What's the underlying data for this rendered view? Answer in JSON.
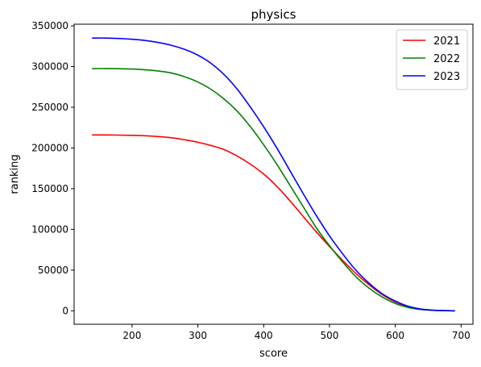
{
  "chart_data": {
    "type": "line",
    "title": "physics",
    "xlabel": "score",
    "ylabel": "ranking",
    "xlim": [
      112,
      718
    ],
    "ylim": [
      -16500,
      352000
    ],
    "xticks": [
      200,
      300,
      400,
      500,
      600,
      700
    ],
    "yticks": [
      0,
      50000,
      100000,
      150000,
      200000,
      250000,
      300000,
      350000
    ],
    "grid": false,
    "legend_position": "upper right",
    "series": [
      {
        "name": "2021",
        "color": "#ff0000",
        "x": [
          140,
          160,
          180,
          200,
          220,
          240,
          260,
          280,
          300,
          320,
          340,
          360,
          380,
          400,
          420,
          440,
          460,
          480,
          500,
          520,
          540,
          560,
          580,
          600,
          620,
          640,
          660,
          680,
          690
        ],
        "y": [
          216000,
          216000,
          215800,
          215500,
          215000,
          214000,
          212500,
          210000,
          207000,
          203000,
          198000,
          190000,
          180000,
          168000,
          153000,
          135000,
          116000,
          97000,
          79000,
          62000,
          46000,
          32000,
          20000,
          11000,
          5000,
          2000,
          600,
          150,
          50
        ]
      },
      {
        "name": "2022",
        "color": "#008000",
        "x": [
          140,
          160,
          180,
          200,
          220,
          240,
          260,
          280,
          300,
          320,
          340,
          360,
          380,
          400,
          420,
          440,
          460,
          480,
          500,
          520,
          540,
          560,
          580,
          600,
          620,
          640,
          660,
          680,
          690
        ],
        "y": [
          297500,
          297500,
          297300,
          297000,
          296000,
          294500,
          292000,
          287500,
          281000,
          272000,
          260000,
          245000,
          226000,
          204000,
          180000,
          154000,
          128000,
          102000,
          80000,
          60000,
          42000,
          28000,
          17000,
          9000,
          4000,
          1500,
          500,
          150,
          50
        ]
      },
      {
        "name": "2023",
        "color": "#0000ff",
        "x": [
          140,
          160,
          180,
          200,
          220,
          240,
          260,
          280,
          300,
          320,
          340,
          360,
          380,
          400,
          420,
          440,
          460,
          480,
          500,
          520,
          540,
          560,
          580,
          600,
          620,
          640,
          660,
          680,
          690
        ],
        "y": [
          335000,
          335000,
          334500,
          333500,
          332000,
          329500,
          326000,
          321000,
          314000,
          304000,
          290000,
          272000,
          250000,
          226000,
          200000,
          172000,
          144000,
          117000,
          92000,
          70000,
          50000,
          34000,
          21000,
          12000,
          5500,
          2000,
          700,
          200,
          50
        ]
      }
    ]
  }
}
